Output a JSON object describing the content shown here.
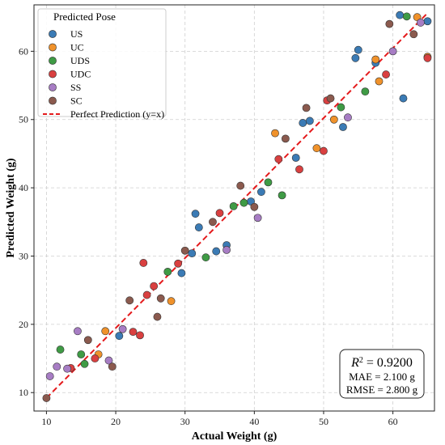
{
  "chart_data": {
    "type": "scatter",
    "xlabel": "Actual Weight (g)",
    "ylabel": "Predicted Weight (g)",
    "xlim": [
      8.2,
      66.0
    ],
    "ylim": [
      7.3,
      66.8
    ],
    "xticks": [
      10,
      20,
      30,
      40,
      50,
      60
    ],
    "yticks": [
      10,
      20,
      30,
      40,
      50,
      60
    ],
    "grid": true,
    "legend": {
      "title": "Predicted Pose",
      "placement": "top-left",
      "reference_line_label": "Perfect Prediction (y=x)"
    },
    "reference_line": {
      "from": [
        10,
        9.2
      ],
      "to": [
        65,
        65.6
      ],
      "color": "#e41a1c"
    },
    "stats": {
      "r2_label": "R",
      "r2_sup": "2",
      "r2_value": " = 0.9200",
      "mae": "MAE = 2.100 g",
      "rmse": "RMSE = 2.800 g",
      "placement": "bottom-right"
    },
    "series": [
      {
        "name": "US",
        "color": "#3b7bb5",
        "points": [
          [
            31.5,
            36.2
          ],
          [
            32.0,
            34.2
          ],
          [
            34.5,
            30.7
          ],
          [
            36.0,
            31.6
          ],
          [
            39.5,
            38.0
          ],
          [
            41.0,
            39.4
          ],
          [
            46.0,
            44.4
          ],
          [
            47.0,
            49.5
          ],
          [
            48.0,
            49.8
          ],
          [
            52.8,
            48.9
          ],
          [
            54.6,
            59.0
          ],
          [
            55.0,
            60.2
          ],
          [
            57.5,
            58.3
          ],
          [
            61.0,
            65.3
          ],
          [
            61.5,
            53.1
          ],
          [
            65.0,
            64.4
          ],
          [
            20.5,
            18.3
          ],
          [
            29.5,
            27.5
          ],
          [
            31.0,
            30.4
          ]
        ]
      },
      {
        "name": "UC",
        "color": "#f0922b",
        "points": [
          [
            18.5,
            19.0
          ],
          [
            17.5,
            15.6
          ],
          [
            28.0,
            23.4
          ],
          [
            43.0,
            48.0
          ],
          [
            49.0,
            45.8
          ],
          [
            51.5,
            50.0
          ],
          [
            57.5,
            58.8
          ],
          [
            58.0,
            55.6
          ],
          [
            63.5,
            65.0
          ],
          [
            65.0,
            59.2
          ]
        ]
      },
      {
        "name": "UDS",
        "color": "#3f9b45",
        "points": [
          [
            12.0,
            16.3
          ],
          [
            15.0,
            15.6
          ],
          [
            15.5,
            14.2
          ],
          [
            27.5,
            27.7
          ],
          [
            33.0,
            29.8
          ],
          [
            37.0,
            37.3
          ],
          [
            38.5,
            37.8
          ],
          [
            42.0,
            40.8
          ],
          [
            44.0,
            38.9
          ],
          [
            52.5,
            51.8
          ],
          [
            56.0,
            54.1
          ],
          [
            62.0,
            65.1
          ]
        ]
      },
      {
        "name": "UDC",
        "color": "#d94040",
        "points": [
          [
            13.5,
            13.6
          ],
          [
            17.0,
            15.0
          ],
          [
            22.5,
            18.9
          ],
          [
            23.5,
            18.4
          ],
          [
            24.0,
            29.0
          ],
          [
            24.5,
            24.3
          ],
          [
            25.5,
            25.6
          ],
          [
            29.0,
            28.9
          ],
          [
            35.0,
            36.3
          ],
          [
            43.5,
            44.2
          ],
          [
            46.5,
            42.7
          ],
          [
            50.0,
            45.4
          ],
          [
            50.5,
            52.8
          ],
          [
            59.0,
            56.6
          ],
          [
            65.0,
            59.0
          ]
        ]
      },
      {
        "name": "SS",
        "color": "#a77dc4",
        "points": [
          [
            10.5,
            12.4
          ],
          [
            11.5,
            13.8
          ],
          [
            13.0,
            13.5
          ],
          [
            14.5,
            19.0
          ],
          [
            19.0,
            14.7
          ],
          [
            21.0,
            19.3
          ],
          [
            36.0,
            30.9
          ],
          [
            40.5,
            35.6
          ],
          [
            53.5,
            50.3
          ],
          [
            60.0,
            60.0
          ],
          [
            64.0,
            64.2
          ]
        ]
      },
      {
        "name": "SC",
        "color": "#8b5a4e",
        "points": [
          [
            10.0,
            9.2
          ],
          [
            16.0,
            17.7
          ],
          [
            19.5,
            13.8
          ],
          [
            22.0,
            23.5
          ],
          [
            26.0,
            21.1
          ],
          [
            26.5,
            23.8
          ],
          [
            30.0,
            30.8
          ],
          [
            34.0,
            35.0
          ],
          [
            38.0,
            40.3
          ],
          [
            40.0,
            37.2
          ],
          [
            44.5,
            47.2
          ],
          [
            47.5,
            51.7
          ],
          [
            51.0,
            53.1
          ],
          [
            59.5,
            64.0
          ],
          [
            63.0,
            62.5
          ]
        ]
      }
    ]
  }
}
